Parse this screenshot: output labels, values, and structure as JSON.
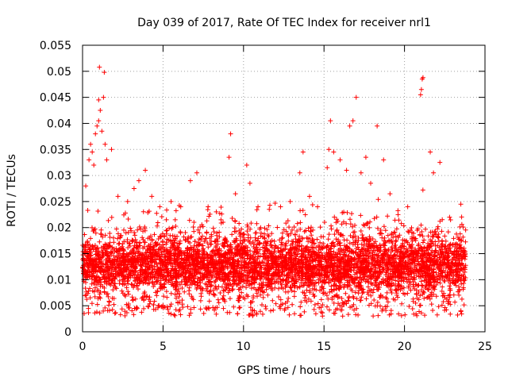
{
  "chart_data": {
    "type": "scatter",
    "title": "Day 039 of 2017, Rate Of TEC Index for receiver nrl1",
    "xlabel": "GPS time / hours",
    "ylabel": "ROTI / TECUs",
    "xlim": [
      0,
      25
    ],
    "ylim": [
      0,
      0.055
    ],
    "x_ticks": [
      0,
      5,
      10,
      15,
      20,
      25
    ],
    "y_ticks": [
      0,
      0.005,
      0.01,
      0.015,
      0.02,
      0.025,
      0.03,
      0.035,
      0.04,
      0.045,
      0.05,
      0.055
    ],
    "grid": true,
    "marker": "+",
    "series": [
      {
        "name": "ROTI",
        "color": "#ff0000",
        "data_range_x": [
          0,
          23.8
        ],
        "typical_band": [
          0.005,
          0.018
        ],
        "points": [
          [
            0.1,
            0.0035
          ],
          [
            0.2,
            0.028
          ],
          [
            0.4,
            0.033
          ],
          [
            0.5,
            0.036
          ],
          [
            0.6,
            0.0345
          ],
          [
            0.7,
            0.032
          ],
          [
            0.8,
            0.038
          ],
          [
            0.9,
            0.0395
          ],
          [
            1.0,
            0.0405
          ],
          [
            1.0,
            0.0445
          ],
          [
            1.05,
            0.0508
          ],
          [
            1.1,
            0.0425
          ],
          [
            1.2,
            0.0385
          ],
          [
            1.3,
            0.045
          ],
          [
            1.35,
            0.0498
          ],
          [
            1.4,
            0.036
          ],
          [
            1.5,
            0.033
          ],
          [
            1.8,
            0.035
          ],
          [
            2.2,
            0.026
          ],
          [
            2.8,
            0.025
          ],
          [
            3.2,
            0.0275
          ],
          [
            3.5,
            0.029
          ],
          [
            3.9,
            0.031
          ],
          [
            4.3,
            0.026
          ],
          [
            4.8,
            0.024
          ],
          [
            5.5,
            0.025
          ],
          [
            6.1,
            0.024
          ],
          [
            6.7,
            0.029
          ],
          [
            7.1,
            0.0305
          ],
          [
            7.8,
            0.024
          ],
          [
            8.6,
            0.0215
          ],
          [
            9.1,
            0.0335
          ],
          [
            9.2,
            0.038
          ],
          [
            9.5,
            0.0265
          ],
          [
            10.2,
            0.032
          ],
          [
            10.4,
            0.0285
          ],
          [
            10.9,
            0.024
          ],
          [
            11.6,
            0.0235
          ],
          [
            12.3,
            0.024
          ],
          [
            12.9,
            0.025
          ],
          [
            13.5,
            0.0305
          ],
          [
            13.7,
            0.0345
          ],
          [
            14.1,
            0.026
          ],
          [
            14.6,
            0.024
          ],
          [
            15.2,
            0.0315
          ],
          [
            15.3,
            0.035
          ],
          [
            15.4,
            0.0405
          ],
          [
            15.6,
            0.0345
          ],
          [
            16.0,
            0.033
          ],
          [
            16.4,
            0.031
          ],
          [
            16.6,
            0.0395
          ],
          [
            16.8,
            0.0405
          ],
          [
            17.0,
            0.045
          ],
          [
            17.3,
            0.0305
          ],
          [
            17.6,
            0.0335
          ],
          [
            17.9,
            0.0285
          ],
          [
            18.3,
            0.0395
          ],
          [
            18.7,
            0.033
          ],
          [
            19.1,
            0.0265
          ],
          [
            19.6,
            0.0225
          ],
          [
            20.2,
            0.024
          ],
          [
            21.0,
            0.0455
          ],
          [
            21.05,
            0.0465
          ],
          [
            21.1,
            0.0485
          ],
          [
            21.15,
            0.0488
          ],
          [
            21.6,
            0.0345
          ],
          [
            21.8,
            0.0305
          ],
          [
            22.2,
            0.0325
          ],
          [
            22.8,
            0.022
          ],
          [
            23.5,
            0.0245
          ]
        ]
      }
    ]
  }
}
